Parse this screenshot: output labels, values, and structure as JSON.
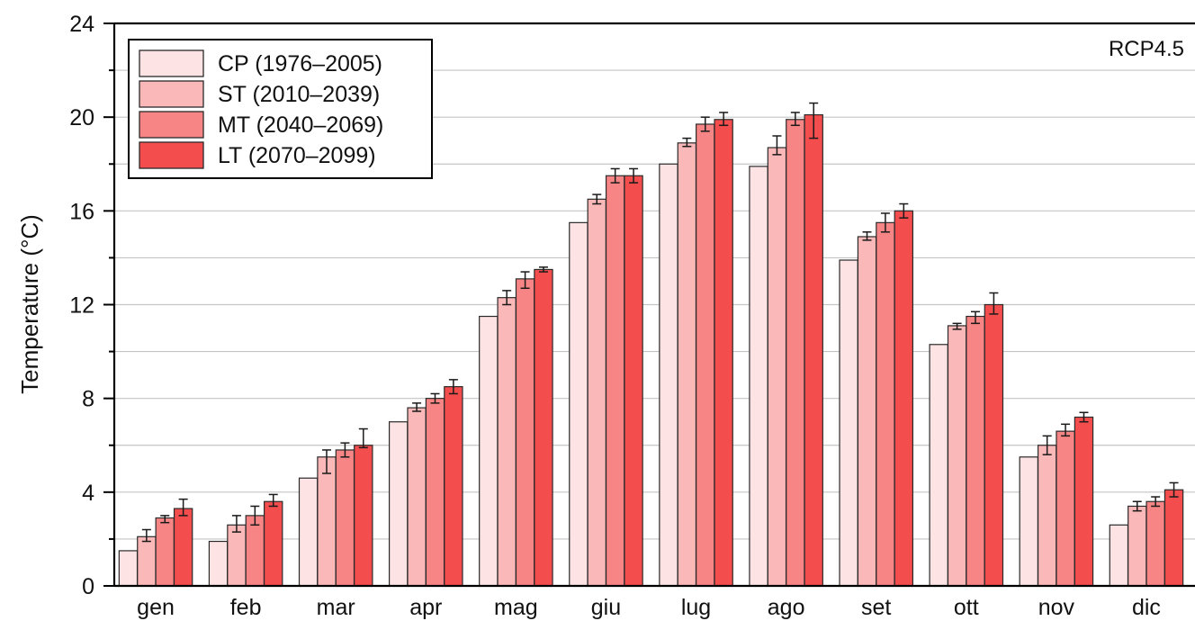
{
  "chart_data": {
    "type": "bar",
    "title": "",
    "scenario_label": "RCP4.5",
    "xlabel": "",
    "ylabel": "Temperature (°C)",
    "ylim": [
      0,
      24
    ],
    "yticks": [
      0,
      4,
      8,
      12,
      16,
      20,
      24
    ],
    "grid": "horizontal",
    "legend_position": "top-left",
    "categories": [
      "gen",
      "feb",
      "mar",
      "apr",
      "mag",
      "giu",
      "lug",
      "ago",
      "set",
      "ott",
      "nov",
      "dic"
    ],
    "series": [
      {
        "name": "CP (1976–2005)",
        "color": "#fde3e3",
        "values": [
          1.5,
          1.9,
          4.6,
          7.0,
          11.5,
          15.5,
          18.0,
          17.9,
          13.9,
          10.3,
          5.5,
          2.6
        ],
        "err_low": [
          null,
          null,
          null,
          null,
          null,
          null,
          null,
          null,
          null,
          null,
          null,
          null
        ],
        "err_high": [
          null,
          null,
          null,
          null,
          null,
          null,
          null,
          null,
          null,
          null,
          null,
          null
        ]
      },
      {
        "name": "ST (2010–2039)",
        "color": "#fbb8b8",
        "values": [
          2.1,
          2.6,
          5.5,
          7.6,
          12.3,
          16.5,
          18.9,
          18.7,
          14.9,
          11.1,
          6.0,
          3.4
        ],
        "err_low": [
          1.9,
          2.3,
          4.8,
          7.45,
          12.0,
          16.3,
          18.75,
          18.4,
          14.75,
          10.95,
          5.6,
          3.2
        ],
        "err_high": [
          2.4,
          3.0,
          5.8,
          7.8,
          12.6,
          16.7,
          19.1,
          19.2,
          15.1,
          11.2,
          6.4,
          3.6
        ]
      },
      {
        "name": "MT (2040–2069)",
        "color": "#f88585",
        "values": [
          2.9,
          3.0,
          5.8,
          8.0,
          13.1,
          17.5,
          19.7,
          19.9,
          15.5,
          11.5,
          6.6,
          3.6
        ],
        "err_low": [
          2.7,
          2.6,
          5.5,
          7.8,
          12.7,
          17.2,
          19.4,
          19.65,
          15.1,
          11.2,
          6.4,
          3.4
        ],
        "err_high": [
          3.0,
          3.4,
          6.1,
          8.2,
          13.4,
          17.8,
          20.0,
          20.2,
          15.9,
          11.7,
          6.9,
          3.8
        ]
      },
      {
        "name": "LT (2070–2099)",
        "color": "#f44d4d",
        "values": [
          3.3,
          3.6,
          6.0,
          8.5,
          13.5,
          17.5,
          19.9,
          20.1,
          16.0,
          12.0,
          7.2,
          4.1
        ],
        "err_low": [
          3.0,
          3.4,
          5.9,
          8.2,
          13.4,
          17.2,
          19.65,
          19.1,
          15.7,
          11.6,
          7.0,
          3.8
        ],
        "err_high": [
          3.7,
          3.9,
          6.7,
          8.8,
          13.6,
          17.8,
          20.2,
          20.6,
          16.3,
          12.5,
          7.4,
          4.4
        ]
      }
    ]
  }
}
